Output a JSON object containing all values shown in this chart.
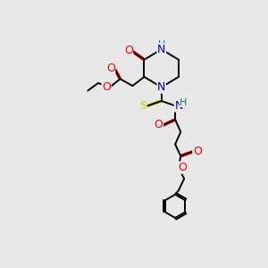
{
  "bg_color": "#e8e8e8",
  "colors": {
    "C": "#000000",
    "N": "#0000cc",
    "O": "#ff0000",
    "S": "#cccc00",
    "H": "#008080"
  },
  "figsize": [
    3.0,
    3.0
  ],
  "dpi": 100
}
